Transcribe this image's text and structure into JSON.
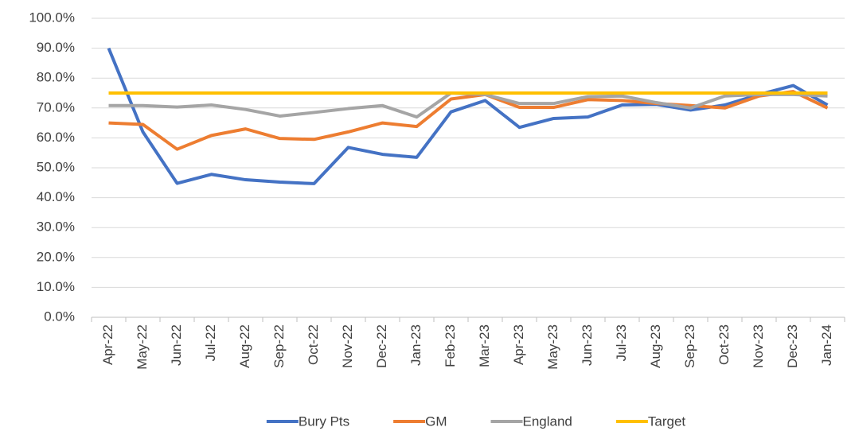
{
  "chart_data": {
    "type": "line",
    "categories": [
      "Apr-22",
      "May-22",
      "Jun-22",
      "Jul-22",
      "Aug-22",
      "Sep-22",
      "Oct-22",
      "Nov-22",
      "Dec-22",
      "Jan-23",
      "Feb-23",
      "Mar-23",
      "Apr-23",
      "May-23",
      "Jun-23",
      "Jul-23",
      "Aug-23",
      "Sep-23",
      "Oct-23",
      "Nov-23",
      "Dec-23",
      "Jan-24"
    ],
    "series": [
      {
        "name": "Bury Pts",
        "color": "#4472c4",
        "values": [
          90,
          62,
          44.8,
          47.8,
          46,
          45.2,
          44.7,
          56.8,
          54.5,
          53.5,
          68.7,
          72.5,
          63.5,
          66.5,
          67,
          71,
          71.2,
          69.3,
          71,
          74.5,
          77.5,
          71
        ]
      },
      {
        "name": "GM",
        "color": "#ed7d31",
        "values": [
          65,
          64.5,
          56.2,
          60.8,
          63,
          59.8,
          59.5,
          62,
          65,
          63.8,
          73,
          74.5,
          70.2,
          70.2,
          72.8,
          72.5,
          71.5,
          70.8,
          70,
          74,
          75.5,
          70
        ]
      },
      {
        "name": "England",
        "color": "#a5a5a5",
        "values": [
          70.8,
          70.8,
          70.3,
          71,
          69.5,
          67.3,
          68.5,
          69.8,
          70.8,
          67,
          75,
          74.5,
          71.5,
          71.5,
          73.8,
          74,
          71.8,
          70,
          74,
          74.5,
          74.5,
          74
        ]
      },
      {
        "name": "Target",
        "color": "#ffc000",
        "values": [
          75,
          75,
          75,
          75,
          75,
          75,
          75,
          75,
          75,
          75,
          75,
          75,
          75,
          75,
          75,
          75,
          75,
          75,
          75,
          75,
          75,
          75
        ]
      }
    ],
    "ylim": [
      0,
      100
    ],
    "yticks": [
      {
        "value": 0,
        "label": "0.0%"
      },
      {
        "value": 10,
        "label": "10.0%"
      },
      {
        "value": 20,
        "label": "20.0%"
      },
      {
        "value": 30,
        "label": "30.0%"
      },
      {
        "value": 40,
        "label": "40.0%"
      },
      {
        "value": 50,
        "label": "50.0%"
      },
      {
        "value": 60,
        "label": "60.0%"
      },
      {
        "value": 70,
        "label": "70.0%"
      },
      {
        "value": 80,
        "label": "80.0%"
      },
      {
        "value": 90,
        "label": "90.0%"
      },
      {
        "value": 100,
        "label": "100.0%"
      }
    ],
    "grid": true,
    "legend": "bottom"
  }
}
